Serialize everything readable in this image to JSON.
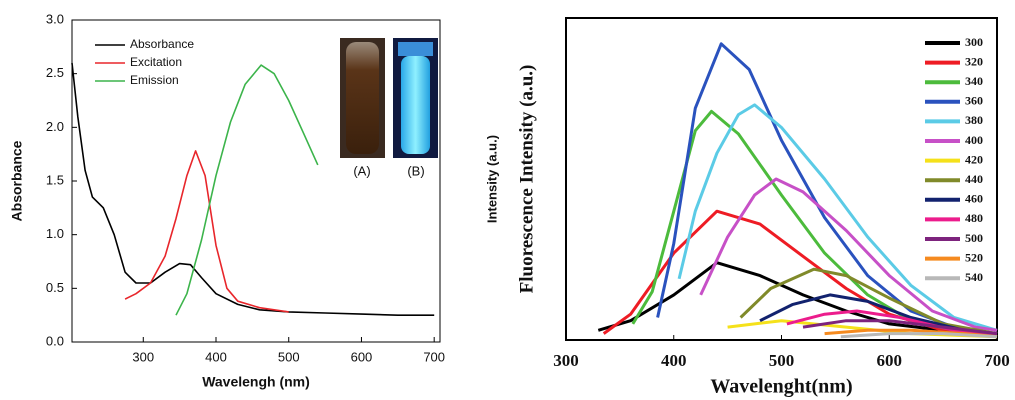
{
  "chart_data": [
    {
      "type": "line",
      "xlabel": "Wavelengh (nm)",
      "ylabel": "Absorbance",
      "xlim": [
        202,
        708
      ],
      "ylim": [
        0,
        3
      ],
      "xticks": [
        300,
        400,
        500,
        600,
        700
      ],
      "yticks": [
        {
          "value": 0,
          "label": "0.0"
        },
        {
          "value": 0.5,
          "label": "0.5"
        },
        {
          "value": 1,
          "label": "1.0"
        },
        {
          "value": 1.5,
          "label": "1.5"
        },
        {
          "value": 2,
          "label": "2.0"
        },
        {
          "value": 2.5,
          "label": "2.5"
        },
        {
          "value": 3,
          "label": "3.0"
        }
      ],
      "legend": "upper left",
      "annotations": [
        "(A)",
        "(B)"
      ],
      "series": [
        {
          "name": "Absorbance",
          "color": "#000000",
          "x": [
            202,
            210,
            220,
            230,
            245,
            260,
            275,
            290,
            310,
            330,
            350,
            365,
            380,
            400,
            430,
            460,
            500,
            550,
            600,
            650,
            700
          ],
          "values": [
            2.6,
            2.1,
            1.6,
            1.35,
            1.25,
            1.0,
            0.65,
            0.55,
            0.55,
            0.65,
            0.73,
            0.72,
            0.6,
            0.45,
            0.35,
            0.3,
            0.28,
            0.27,
            0.26,
            0.25,
            0.25
          ]
        },
        {
          "name": "Excitation",
          "color": "#e8262b",
          "x": [
            275,
            290,
            310,
            330,
            345,
            360,
            372,
            385,
            400,
            415,
            430,
            460,
            500
          ],
          "values": [
            0.4,
            0.45,
            0.55,
            0.8,
            1.15,
            1.55,
            1.78,
            1.55,
            0.9,
            0.5,
            0.38,
            0.32,
            0.28
          ]
        },
        {
          "name": "Emission",
          "color": "#3cb44b",
          "x": [
            345,
            360,
            380,
            400,
            420,
            440,
            462,
            480,
            500,
            520,
            540
          ],
          "values": [
            0.25,
            0.45,
            0.95,
            1.55,
            2.05,
            2.4,
            2.58,
            2.5,
            2.25,
            1.95,
            1.65
          ]
        }
      ]
    },
    {
      "type": "line",
      "xlabel": "Wavelenght(nm)",
      "ylabel": "Fluorescence Intensity (a.u.)",
      "ylabel_overlay": "Intensity (a.u.)",
      "xlim": [
        300,
        700
      ],
      "ylim": [
        0,
        100
      ],
      "xticks": [
        300,
        400,
        500,
        600,
        700
      ],
      "legend": "upper right",
      "series": [
        {
          "name": "300",
          "color": "#000000",
          "x": [
            330,
            360,
            400,
            440,
            480,
            520,
            560,
            600,
            650,
            700
          ],
          "values": [
            3,
            6,
            14,
            24,
            20,
            14,
            9,
            5,
            3,
            1
          ]
        },
        {
          "name": "320",
          "color": "#ee1c24",
          "x": [
            335,
            360,
            400,
            440,
            480,
            520,
            560,
            600,
            650,
            700
          ],
          "values": [
            2,
            8,
            27,
            40,
            36,
            26,
            16,
            8,
            3,
            1
          ]
        },
        {
          "name": "340",
          "color": "#4cbb3c",
          "x": [
            362,
            380,
            400,
            420,
            435,
            460,
            500,
            540,
            580,
            620,
            660,
            700
          ],
          "values": [
            5,
            15,
            40,
            65,
            71,
            64,
            45,
            27,
            14,
            6,
            3,
            1
          ]
        },
        {
          "name": "360",
          "color": "#2a52be",
          "x": [
            385,
            400,
            420,
            444,
            470,
            500,
            540,
            580,
            620,
            660,
            700
          ],
          "values": [
            7,
            30,
            72,
            92,
            84,
            62,
            38,
            20,
            9,
            4,
            2
          ]
        },
        {
          "name": "380",
          "color": "#5bcbe6",
          "x": [
            405,
            420,
            440,
            460,
            475,
            500,
            540,
            580,
            620,
            660,
            700
          ],
          "values": [
            19,
            40,
            58,
            70,
            73,
            66,
            50,
            32,
            17,
            7,
            3
          ]
        },
        {
          "name": "400",
          "color": "#c750c7",
          "x": [
            425,
            450,
            475,
            495,
            520,
            560,
            600,
            640,
            680,
            700
          ],
          "values": [
            14,
            32,
            45,
            50,
            46,
            34,
            20,
            9,
            4,
            3
          ]
        },
        {
          "name": "420",
          "color": "#f5e11a",
          "x": [
            450,
            500,
            560,
            620,
            700
          ],
          "values": [
            4,
            6,
            4,
            2,
            1
          ]
        },
        {
          "name": "440",
          "color": "#808a2a",
          "x": [
            462,
            490,
            530,
            560,
            600,
            650,
            700
          ],
          "values": [
            7,
            16,
            22,
            20,
            13,
            5,
            2
          ]
        },
        {
          "name": "460",
          "color": "#12226e",
          "x": [
            480,
            510,
            545,
            580,
            620,
            670,
            700
          ],
          "values": [
            6,
            11,
            14,
            12,
            7,
            3,
            2
          ]
        },
        {
          "name": "480",
          "color": "#ec1c8c",
          "x": [
            505,
            540,
            570,
            610,
            660,
            700
          ],
          "values": [
            5,
            8,
            9,
            7,
            3,
            2
          ]
        },
        {
          "name": "500",
          "color": "#7d237d",
          "x": [
            520,
            560,
            600,
            650,
            700
          ],
          "values": [
            4,
            6,
            6,
            4,
            2
          ]
        },
        {
          "name": "520",
          "color": "#f58a1f",
          "x": [
            540,
            580,
            620,
            670,
            700
          ],
          "values": [
            2,
            3,
            3,
            2,
            1
          ]
        },
        {
          "name": "540",
          "color": "#b8b8b8",
          "x": [
            555,
            600,
            650,
            700
          ],
          "values": [
            1,
            2,
            2,
            1
          ]
        }
      ]
    }
  ]
}
